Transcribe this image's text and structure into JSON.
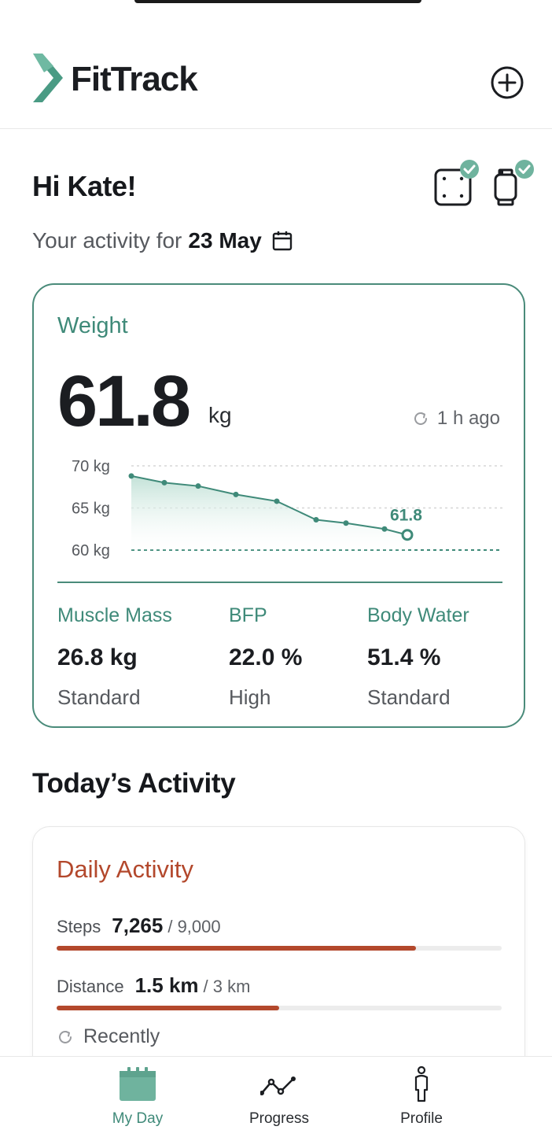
{
  "app": {
    "brand": "FitTrack",
    "add_icon": "plus-circle-icon"
  },
  "greeting": {
    "hello": "Hi Kate!",
    "subtitle_prefix": "Your activity for",
    "date": "23 May",
    "devices": [
      {
        "name": "scale",
        "connected": true
      },
      {
        "name": "watch",
        "connected": true
      }
    ]
  },
  "weight": {
    "title": "Weight",
    "value": "61.8",
    "unit": "kg",
    "updated": "1 h ago",
    "metrics": [
      {
        "label": "Muscle Mass",
        "value": "26.8 kg",
        "status": "Standard"
      },
      {
        "label": "BFP",
        "value": "22.0 %",
        "status": "High"
      },
      {
        "label": "Body Water",
        "value": "51.4 %",
        "status": "Standard"
      }
    ]
  },
  "chart_data": {
    "type": "area",
    "title": "",
    "xlabel": "",
    "ylabel": "",
    "ylim": [
      60,
      70
    ],
    "y_ticks": [
      "70 kg",
      "65 kg",
      "60 kg"
    ],
    "grid": true,
    "series": [
      {
        "values": [
          68.8,
          68.0,
          67.6,
          66.6,
          65.8,
          63.6,
          63.2,
          62.5,
          61.8
        ]
      }
    ],
    "last_label": "61.8",
    "colors": {
      "line": "#3f8a79",
      "fill": "#cfe6de"
    }
  },
  "activity": {
    "section_title": "Today’s Activity",
    "card_title": "Daily Activity",
    "rows": [
      {
        "label": "Steps",
        "value": "7,265",
        "goal": "/ 9,000",
        "progress": 0.807
      },
      {
        "label": "Distance",
        "value": "1.5 km",
        "goal": "/ 3 km",
        "progress": 0.5
      }
    ],
    "updated": "Recently"
  },
  "nav": {
    "items": [
      {
        "label": "My Day",
        "icon": "calendar-icon",
        "active": true
      },
      {
        "label": "Progress",
        "icon": "line-chart-icon",
        "active": false
      },
      {
        "label": "Profile",
        "icon": "person-icon",
        "active": false
      }
    ]
  }
}
